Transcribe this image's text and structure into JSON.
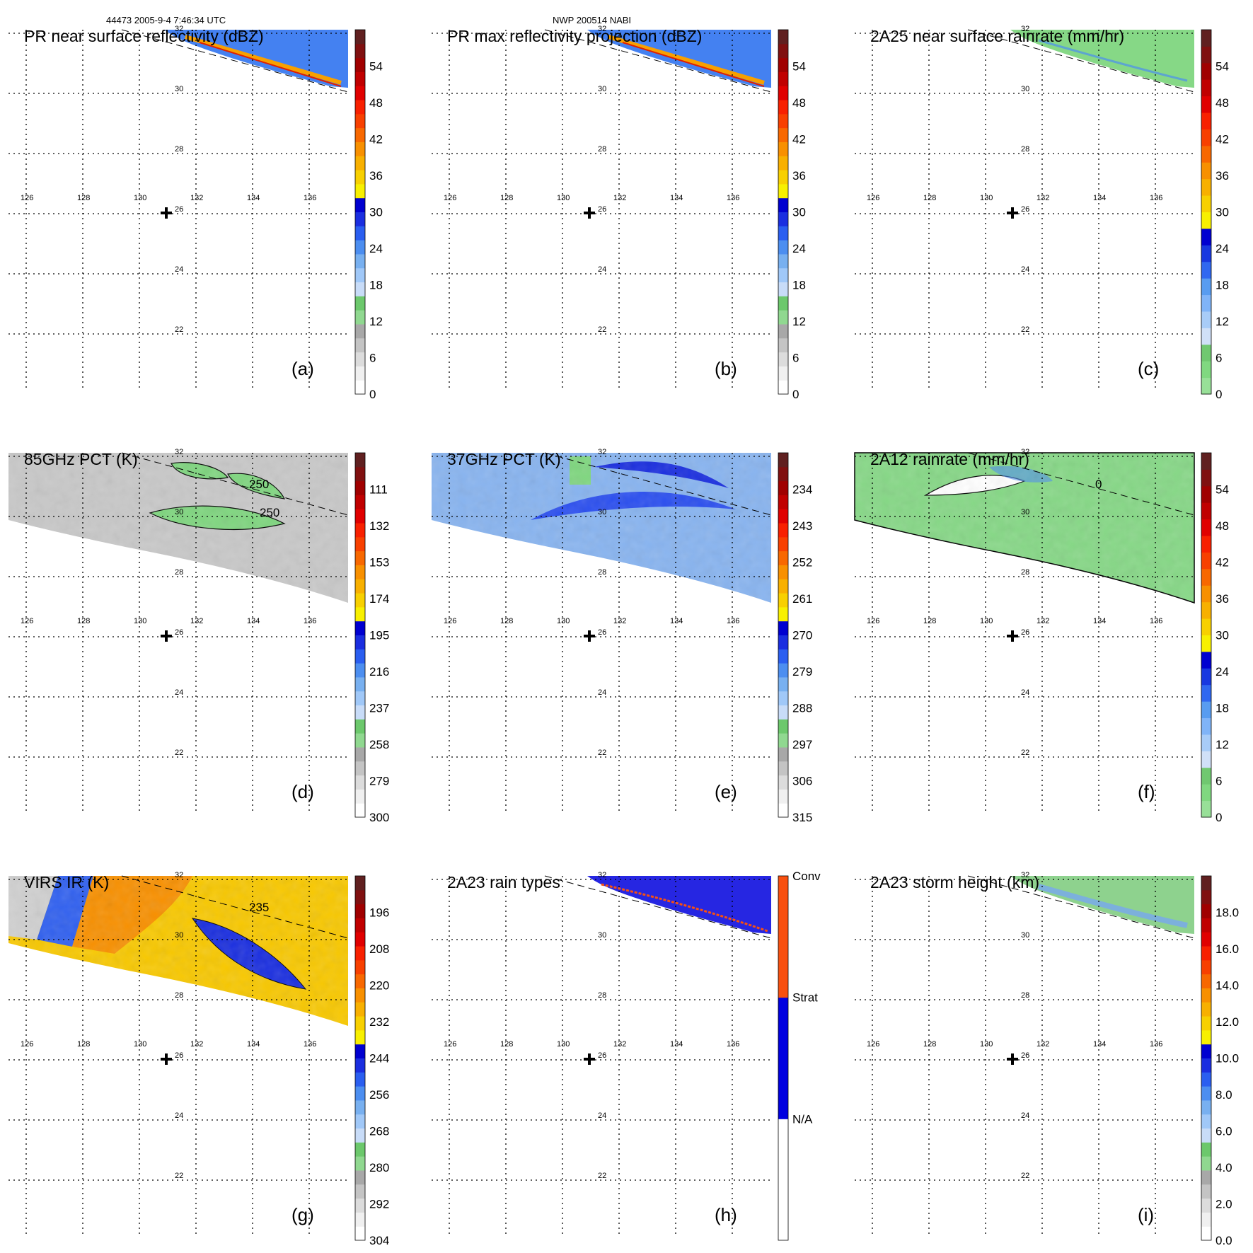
{
  "header": {
    "left": "44473 2005-9-4 7:46:34 UTC",
    "center": "NWP 200514 NABI"
  },
  "map": {
    "lon_ticks": [
      "126",
      "128",
      "130",
      "132",
      "134",
      "136"
    ],
    "lat_ticks": [
      "22",
      "24",
      "26",
      "28",
      "30",
      "32"
    ],
    "marker": "storm-center-cross"
  },
  "panels": [
    {
      "id": "a",
      "title": "PR near surface reflectivity (dBZ)",
      "label": "(a)",
      "field": "narrow-swath",
      "colorbar": [
        "0",
        "6",
        "12",
        "18",
        "24",
        "30",
        "36",
        "42",
        "48",
        "54"
      ],
      "colorbar_type": "reflectivity",
      "contours": []
    },
    {
      "id": "b",
      "title": "PR max reflectivity projection (dBZ)",
      "label": "(b)",
      "field": "narrow-swath",
      "colorbar": [
        "0",
        "6",
        "12",
        "18",
        "24",
        "30",
        "36",
        "42",
        "48",
        "54"
      ],
      "colorbar_type": "reflectivity",
      "contours": []
    },
    {
      "id": "c",
      "title": "2A25 near surface rainrate (mm/hr)",
      "label": "(c)",
      "field": "narrow-swath-rain",
      "colorbar": [
        "0",
        "6",
        "12",
        "18",
        "24",
        "30",
        "36",
        "42",
        "48",
        "54"
      ],
      "colorbar_type": "rain",
      "contours": []
    },
    {
      "id": "d",
      "title": "85GHz PCT (K)",
      "label": "(d)",
      "field": "wide-swath-gray",
      "colorbar": [
        "300",
        "279",
        "258",
        "237",
        "216",
        "195",
        "174",
        "153",
        "132",
        "111"
      ],
      "colorbar_type": "reflectivity",
      "contours": [
        "250",
        "250"
      ]
    },
    {
      "id": "e",
      "title": "37GHz PCT (K)",
      "label": "(e)",
      "field": "wide-swath-blue",
      "colorbar": [
        "315",
        "306",
        "297",
        "288",
        "279",
        "270",
        "261",
        "252",
        "243",
        "234"
      ],
      "colorbar_type": "reflectivity",
      "contours": []
    },
    {
      "id": "f",
      "title": "2A12 rainrate (mm/hr)",
      "label": "(f)",
      "field": "wide-swath-green",
      "colorbar": [
        "0",
        "6",
        "12",
        "18",
        "24",
        "30",
        "36",
        "42",
        "48",
        "54"
      ],
      "colorbar_type": "rain",
      "contours": [
        "0"
      ]
    },
    {
      "id": "g",
      "title": "VIRS IR (K)",
      "label": "(g)",
      "field": "wide-swath-ir",
      "colorbar": [
        "304",
        "292",
        "280",
        "268",
        "256",
        "244",
        "232",
        "220",
        "208",
        "196"
      ],
      "colorbar_type": "reflectivity",
      "contours": [
        "235"
      ]
    },
    {
      "id": "h",
      "title": "2A23 rain types",
      "label": "(h)",
      "field": "narrow-swath-type",
      "colorbar": [
        "N/A",
        "Strat",
        "Conv"
      ],
      "colorbar_type": "raintype",
      "contours": []
    },
    {
      "id": "i",
      "title": "2A23 storm height (km)",
      "label": "(i)",
      "field": "narrow-swath-height",
      "colorbar": [
        "0.0",
        "2.0",
        "4.0",
        "6.0",
        "8.0",
        "10.0",
        "12.0",
        "14.0",
        "16.0",
        "18.0"
      ],
      "colorbar_type": "reflectivity",
      "contours": []
    }
  ],
  "colors": {
    "reflectivity": [
      "#ffffff",
      "#f0f0f0",
      "#dcdcdc",
      "#c4c4c4",
      "#a8a8a8",
      "#90d890",
      "#6cc86c",
      "#c8dcf8",
      "#a0c8f8",
      "#78b0f0",
      "#4c8ef0",
      "#2a5ef0",
      "#1a2ee0",
      "#0000d0",
      "#f8f000",
      "#f8d000",
      "#f8b000",
      "#f89000",
      "#f86800",
      "#f84000",
      "#f82000",
      "#e00000",
      "#c00000",
      "#a00000",
      "#801010",
      "#602020"
    ],
    "rain": [
      "#98e098",
      "#80d880",
      "#70c870",
      "#d0e0f8",
      "#a8ccf8",
      "#80b4f8",
      "#589cf0",
      "#3068f0",
      "#1838e0",
      "#0000d0",
      "#f8f000",
      "#f8d000",
      "#f8b000",
      "#f89000",
      "#f86800",
      "#f84000",
      "#f82000",
      "#e00000",
      "#c00000",
      "#a00000",
      "#801010",
      "#602020"
    ],
    "raintype": [
      "#ffffff",
      "#0000e0",
      "#f85010"
    ]
  }
}
